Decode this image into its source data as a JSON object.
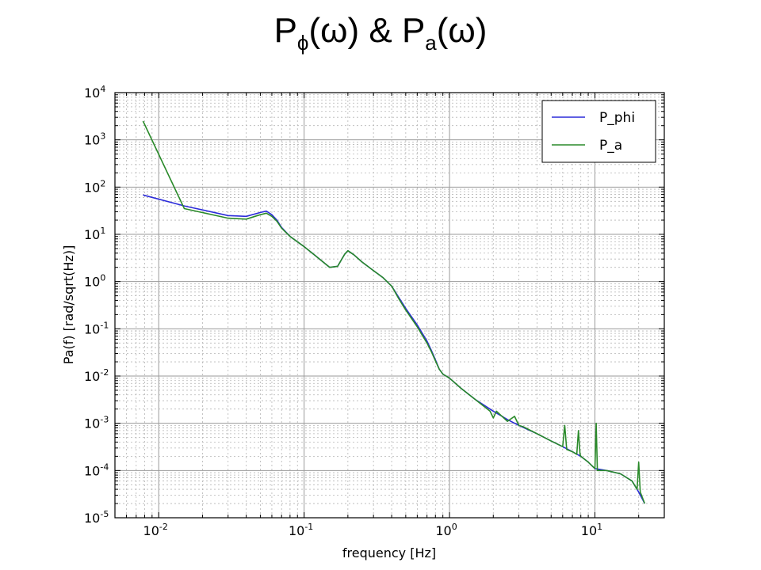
{
  "title": {
    "parts": [
      {
        "text": "P",
        "sub": false
      },
      {
        "text": "ϕ",
        "sub": true
      },
      {
        "text": "(ω) & P",
        "sub": false
      },
      {
        "text": "a",
        "sub": true
      },
      {
        "text": "(ω)",
        "sub": false
      }
    ]
  },
  "chart_data": {
    "type": "line",
    "title": "",
    "xlabel": "frequency [Hz]",
    "ylabel": "Pa(f) [rad/sqrt(Hz)]",
    "xscale": "log",
    "yscale": "log",
    "xlim": [
      0.005,
      30
    ],
    "ylim": [
      1e-05,
      10000
    ],
    "grid": true,
    "legend_position": "top-right",
    "x_ticks": [
      {
        "value": 0.01,
        "base": "10",
        "exp": "-2"
      },
      {
        "value": 0.1,
        "base": "10",
        "exp": "-1"
      },
      {
        "value": 1,
        "base": "10",
        "exp": "0"
      },
      {
        "value": 10,
        "base": "10",
        "exp": "1"
      }
    ],
    "y_ticks": [
      {
        "value": 1e-05,
        "base": "10",
        "exp": "-5"
      },
      {
        "value": 0.0001,
        "base": "10",
        "exp": "-4"
      },
      {
        "value": 0.001,
        "base": "10",
        "exp": "-3"
      },
      {
        "value": 0.01,
        "base": "10",
        "exp": "-2"
      },
      {
        "value": 0.1,
        "base": "10",
        "exp": "-1"
      },
      {
        "value": 1,
        "base": "10",
        "exp": "0"
      },
      {
        "value": 10,
        "base": "10",
        "exp": "1"
      },
      {
        "value": 100,
        "base": "10",
        "exp": "2"
      },
      {
        "value": 1000,
        "base": "10",
        "exp": "3"
      },
      {
        "value": 10000,
        "base": "10",
        "exp": "4"
      }
    ],
    "series": [
      {
        "name": "P_phi",
        "color": "#2b2bd9",
        "x": [
          0.0078,
          0.015,
          0.03,
          0.04,
          0.05,
          0.055,
          0.06,
          0.065,
          0.07,
          0.08,
          0.1,
          0.12,
          0.15,
          0.17,
          0.19,
          0.2,
          0.22,
          0.25,
          0.3,
          0.35,
          0.4,
          0.45,
          0.5,
          0.6,
          0.7,
          0.75,
          0.8,
          0.85,
          0.9,
          1.0,
          1.2,
          1.5,
          2.0,
          2.5,
          3.0,
          4.0,
          5.0,
          6.0,
          7.0,
          8.0,
          9.0,
          10.0,
          12.0,
          15.0,
          18.0,
          20.0,
          22.0
        ],
        "y": [
          68,
          40,
          25,
          24,
          29,
          31,
          26,
          20,
          14,
          9,
          5.5,
          3.5,
          2.0,
          2.1,
          3.8,
          4.5,
          3.7,
          2.6,
          1.7,
          1.2,
          0.8,
          0.45,
          0.27,
          0.12,
          0.055,
          0.035,
          0.022,
          0.014,
          0.011,
          0.009,
          0.0055,
          0.0032,
          0.0018,
          0.0012,
          0.0009,
          0.0006,
          0.00042,
          0.00032,
          0.00025,
          0.0002,
          0.00015,
          0.00011,
          0.0001,
          8.5e-05,
          6e-05,
          3.5e-05,
          2e-05
        ]
      },
      {
        "name": "P_a",
        "color": "#2a8a2a",
        "x": [
          0.0078,
          0.015,
          0.03,
          0.04,
          0.05,
          0.055,
          0.06,
          0.065,
          0.07,
          0.08,
          0.1,
          0.12,
          0.15,
          0.17,
          0.19,
          0.2,
          0.22,
          0.25,
          0.3,
          0.35,
          0.4,
          0.45,
          0.5,
          0.6,
          0.7,
          0.75,
          0.8,
          0.85,
          0.9,
          1.0,
          1.2,
          1.5,
          1.9,
          2.0,
          2.1,
          2.5,
          2.8,
          3.0,
          3.2,
          4.0,
          5.0,
          6.0,
          6.2,
          6.4,
          7.0,
          7.5,
          7.7,
          7.9,
          8.0,
          9.0,
          10.0,
          10.2,
          10.4,
          12.0,
          15.0,
          18.0,
          19.5,
          20.0,
          20.5,
          22.0
        ],
        "y": [
          2500,
          35,
          22,
          21,
          26,
          28,
          24,
          19,
          13.5,
          9,
          5.5,
          3.5,
          2.0,
          2.1,
          3.8,
          4.5,
          3.7,
          2.6,
          1.7,
          1.2,
          0.8,
          0.42,
          0.25,
          0.11,
          0.05,
          0.033,
          0.021,
          0.014,
          0.011,
          0.009,
          0.0055,
          0.0032,
          0.0018,
          0.0013,
          0.0018,
          0.0011,
          0.0014,
          0.0009,
          0.00085,
          0.0006,
          0.00042,
          0.00032,
          0.0009,
          0.00028,
          0.00025,
          0.00022,
          0.0007,
          0.00022,
          0.0002,
          0.00015,
          0.00011,
          0.001,
          0.0001,
          0.0001,
          8.5e-05,
          6e-05,
          4e-05,
          0.00015,
          3.5e-05,
          2e-05
        ]
      }
    ]
  }
}
